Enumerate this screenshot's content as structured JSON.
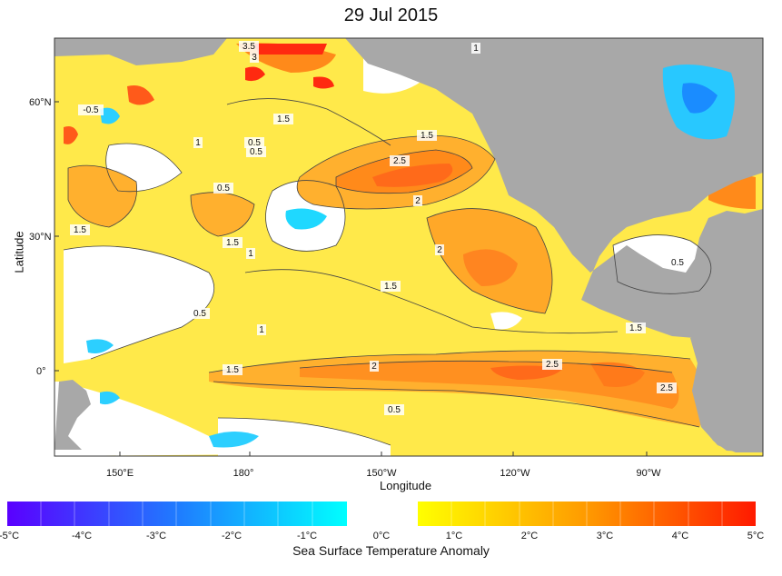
{
  "title": "29 Jul 2015",
  "x_axis": {
    "label": "Longitude",
    "ticks": [
      "150°E",
      "180°",
      "150°W",
      "120°W",
      "90°W"
    ]
  },
  "y_axis": {
    "label": "Latitude",
    "ticks": [
      "60°N",
      "30°N",
      "0°"
    ]
  },
  "colorbar": {
    "label": "Sea Surface Temperature Anomaly",
    "ticks": [
      "-5°C",
      "-4°C",
      "-3°C",
      "-2°C",
      "-1°C",
      "0°C",
      "1°C",
      "2°C",
      "3°C",
      "4°C",
      "5°C"
    ],
    "colors": {
      "neg_min": "#5a00ff",
      "neg_mid": "#1f7bff",
      "neg_max": "#00ffff",
      "pos_min": "#ffff00",
      "pos_mid": "#ff9a00",
      "pos_max": "#ff1a00",
      "land": "#a8a8a8"
    }
  },
  "contour_labels": [
    "3.5",
    "3",
    "1",
    "-0.5",
    "1.5",
    "1",
    "0.5",
    "0.5",
    "1.5",
    "2.5",
    "0.5",
    "2",
    "1.5",
    "1.5",
    "1",
    "2",
    "0.5",
    "1.5",
    "0.5",
    "1",
    "1.5",
    "1.5",
    "2",
    "2.5",
    "2.5",
    "0.5"
  ],
  "map_region": "Pacific Ocean sea surface temperature anomaly"
}
